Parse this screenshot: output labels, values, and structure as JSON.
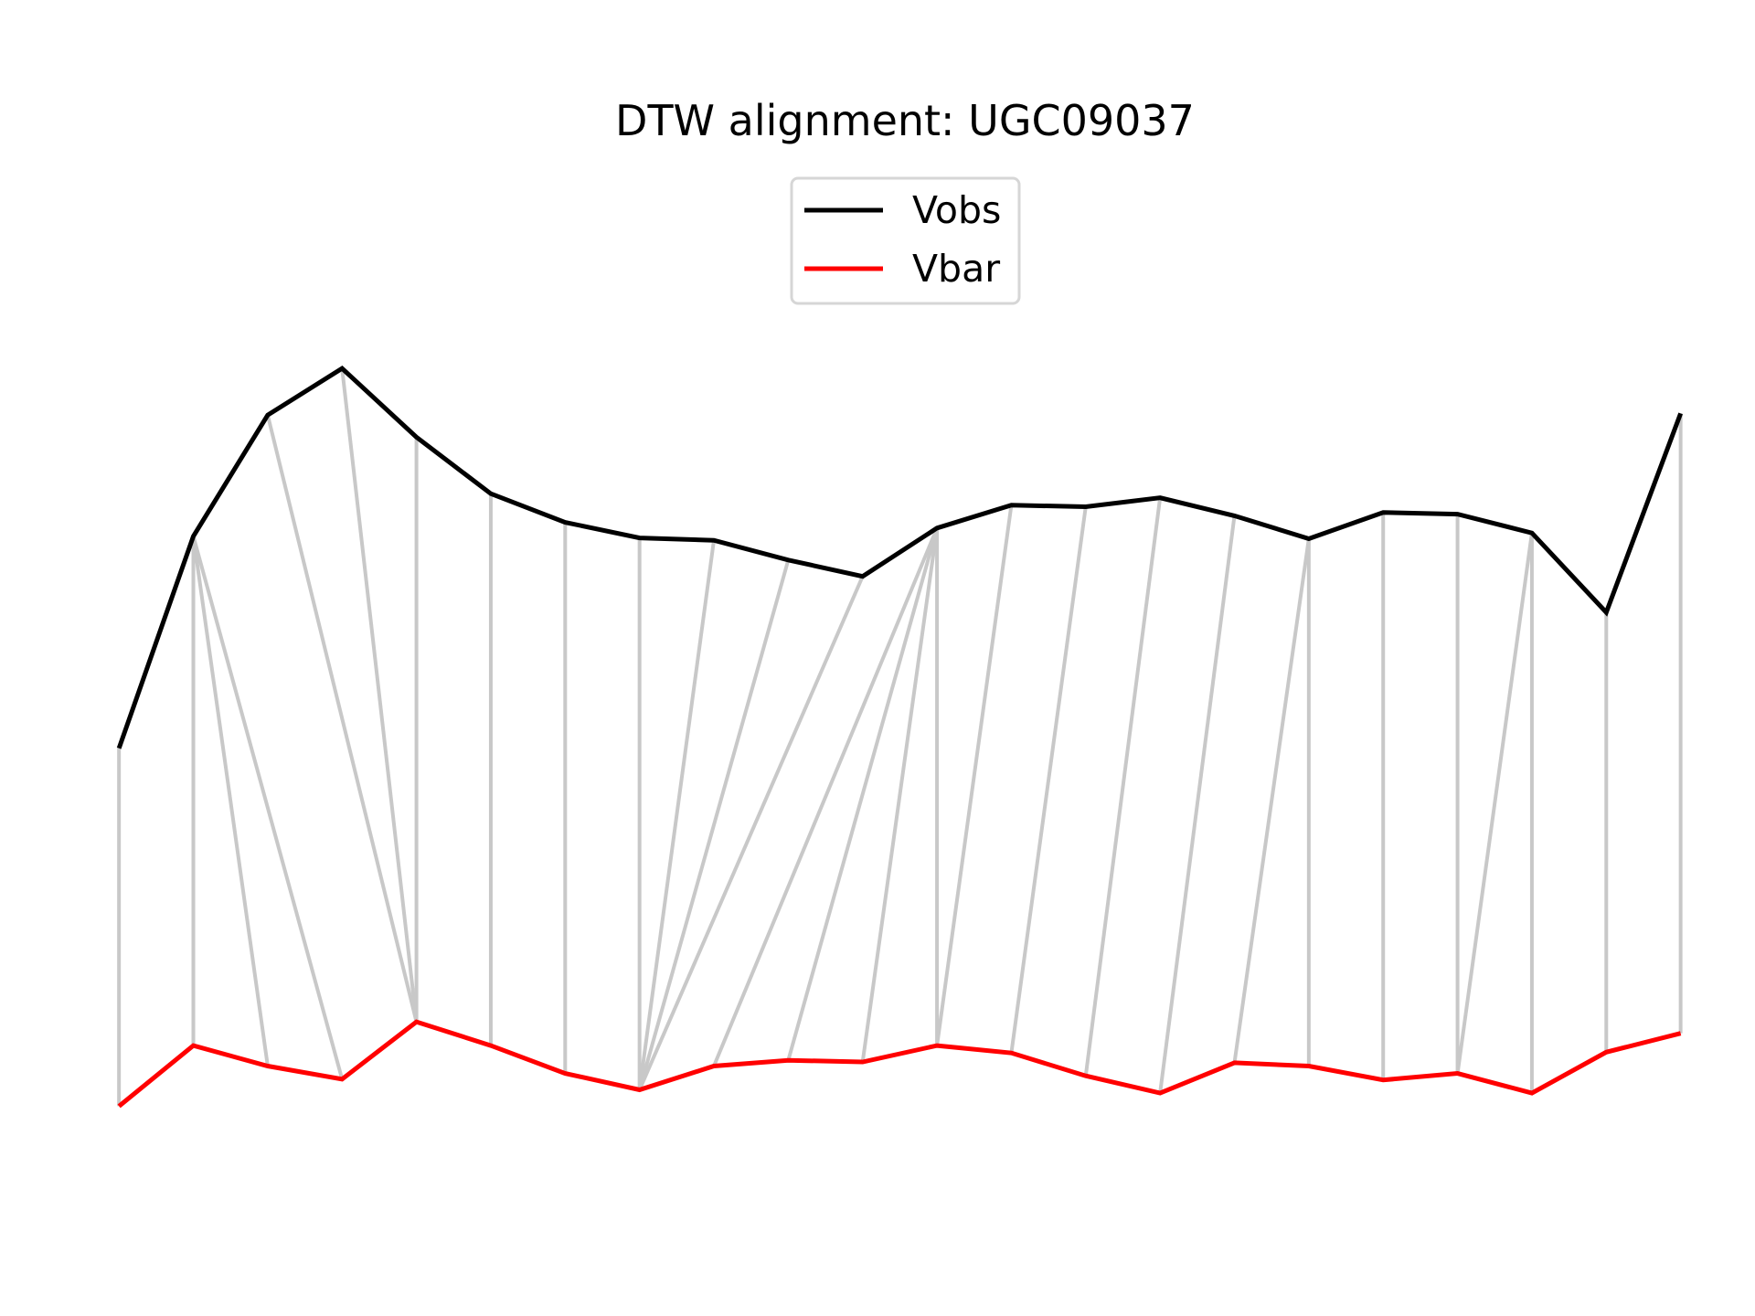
{
  "chart_data": {
    "type": "line",
    "title": "DTW alignment: UGC09037",
    "axes_visible": false,
    "grid": false,
    "legend": {
      "placement": "top-center"
    },
    "x": [
      0,
      1,
      2,
      3,
      4,
      5,
      6,
      7,
      8,
      9,
      10,
      11,
      12,
      13,
      14,
      15,
      16,
      17,
      18,
      19,
      20,
      21
    ],
    "xlim": [
      -1.6,
      22.0
    ],
    "ylim": [
      -0.05,
      1.2
    ],
    "series": [
      {
        "name": "Vobs",
        "color": "#000000",
        "values": [
          0.487,
          0.746,
          0.894,
          0.951,
          0.867,
          0.798,
          0.763,
          0.744,
          0.741,
          0.717,
          0.697,
          0.756,
          0.784,
          0.782,
          0.793,
          0.771,
          0.743,
          0.775,
          0.773,
          0.75,
          0.653,
          0.896
        ]
      },
      {
        "name": "Vbar",
        "color": "#ff0000",
        "values": [
          0.05,
          0.124,
          0.099,
          0.083,
          0.153,
          0.124,
          0.09,
          0.07,
          0.099,
          0.106,
          0.104,
          0.124,
          0.115,
          0.087,
          0.066,
          0.103,
          0.099,
          0.082,
          0.09,
          0.066,
          0.116,
          0.139
        ]
      }
    ],
    "alignment": {
      "color": "#c8c8c8",
      "pairs": [
        [
          0,
          0
        ],
        [
          1,
          1
        ],
        [
          1,
          2
        ],
        [
          1,
          3
        ],
        [
          2,
          4
        ],
        [
          3,
          4
        ],
        [
          4,
          4
        ],
        [
          5,
          5
        ],
        [
          6,
          6
        ],
        [
          7,
          7
        ],
        [
          8,
          7
        ],
        [
          9,
          7
        ],
        [
          10,
          7
        ],
        [
          11,
          8
        ],
        [
          11,
          9
        ],
        [
          11,
          10
        ],
        [
          11,
          11
        ],
        [
          12,
          11
        ],
        [
          13,
          12
        ],
        [
          14,
          13
        ],
        [
          15,
          14
        ],
        [
          16,
          15
        ],
        [
          16,
          16
        ],
        [
          17,
          17
        ],
        [
          18,
          18
        ],
        [
          19,
          18
        ],
        [
          19,
          19
        ],
        [
          20,
          20
        ],
        [
          21,
          21
        ]
      ]
    }
  }
}
